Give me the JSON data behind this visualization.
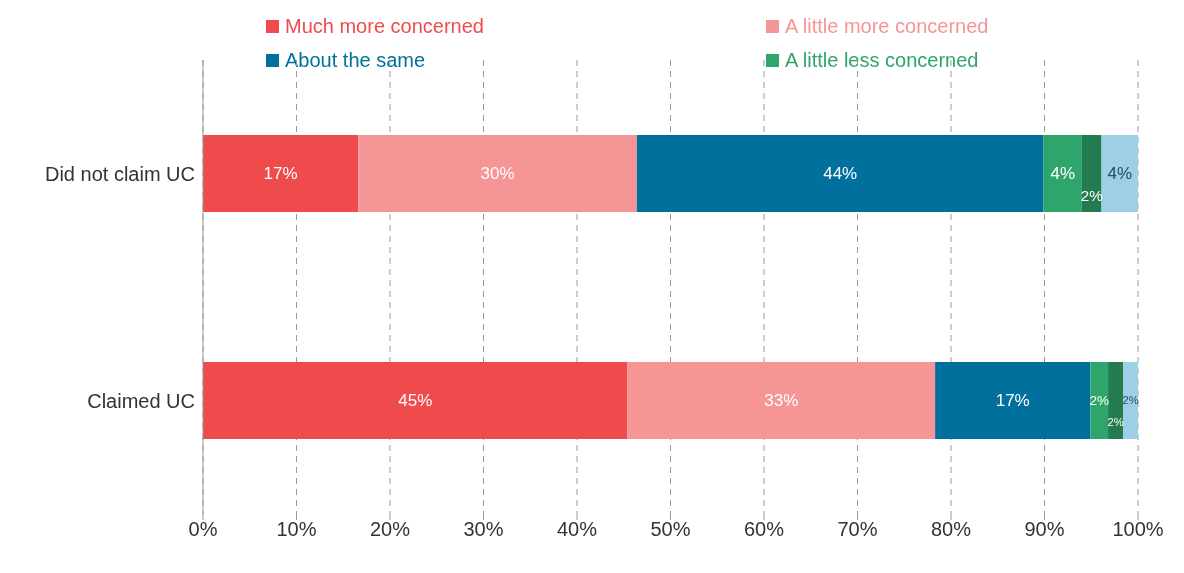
{
  "chart_data": {
    "type": "bar",
    "orientation": "horizontal",
    "stacked": true,
    "categories": [
      "Did not claim UC",
      "Claimed UC"
    ],
    "series": [
      {
        "name": "Much more concerned",
        "color": "#ef4b4d",
        "values": [
          16.6,
          45.4
        ],
        "value_labels": [
          "17%",
          "45%"
        ]
      },
      {
        "name": "A little more concerned",
        "color": "#f69596",
        "values": [
          29.8,
          32.9
        ],
        "value_labels": [
          "30%",
          "33%"
        ]
      },
      {
        "name": "About the same",
        "color": "#01709c",
        "values": [
          43.5,
          16.6
        ],
        "value_labels": [
          "44%",
          "17%"
        ]
      },
      {
        "name": "A little less concerned",
        "color": "#2fa56b",
        "values": [
          4.1,
          1.9
        ],
        "value_labels": [
          "4%",
          "2%"
        ]
      },
      {
        "color": "#237b50",
        "values": [
          2.1,
          1.6
        ],
        "value_labels": [
          "2%",
          "2%"
        ]
      },
      {
        "color": "#9dd0e6",
        "values": [
          3.9,
          1.6
        ],
        "value_labels": [
          "4%",
          "2%"
        ]
      }
    ],
    "xlim": [
      0,
      100
    ],
    "xticks": [
      {
        "value": 0,
        "label": "0%"
      },
      {
        "value": 10,
        "label": "10%"
      },
      {
        "value": 20,
        "label": "20%"
      },
      {
        "value": 30,
        "label": "30%"
      },
      {
        "value": 40,
        "label": "40%"
      },
      {
        "value": 50,
        "label": "50%"
      },
      {
        "value": 60,
        "label": "60%"
      },
      {
        "value": 70,
        "label": "70%"
      },
      {
        "value": 80,
        "label": "80%"
      },
      {
        "value": 90,
        "label": "90%"
      },
      {
        "value": 100,
        "label": "100%"
      }
    ],
    "grid": "x",
    "legend": "top"
  }
}
